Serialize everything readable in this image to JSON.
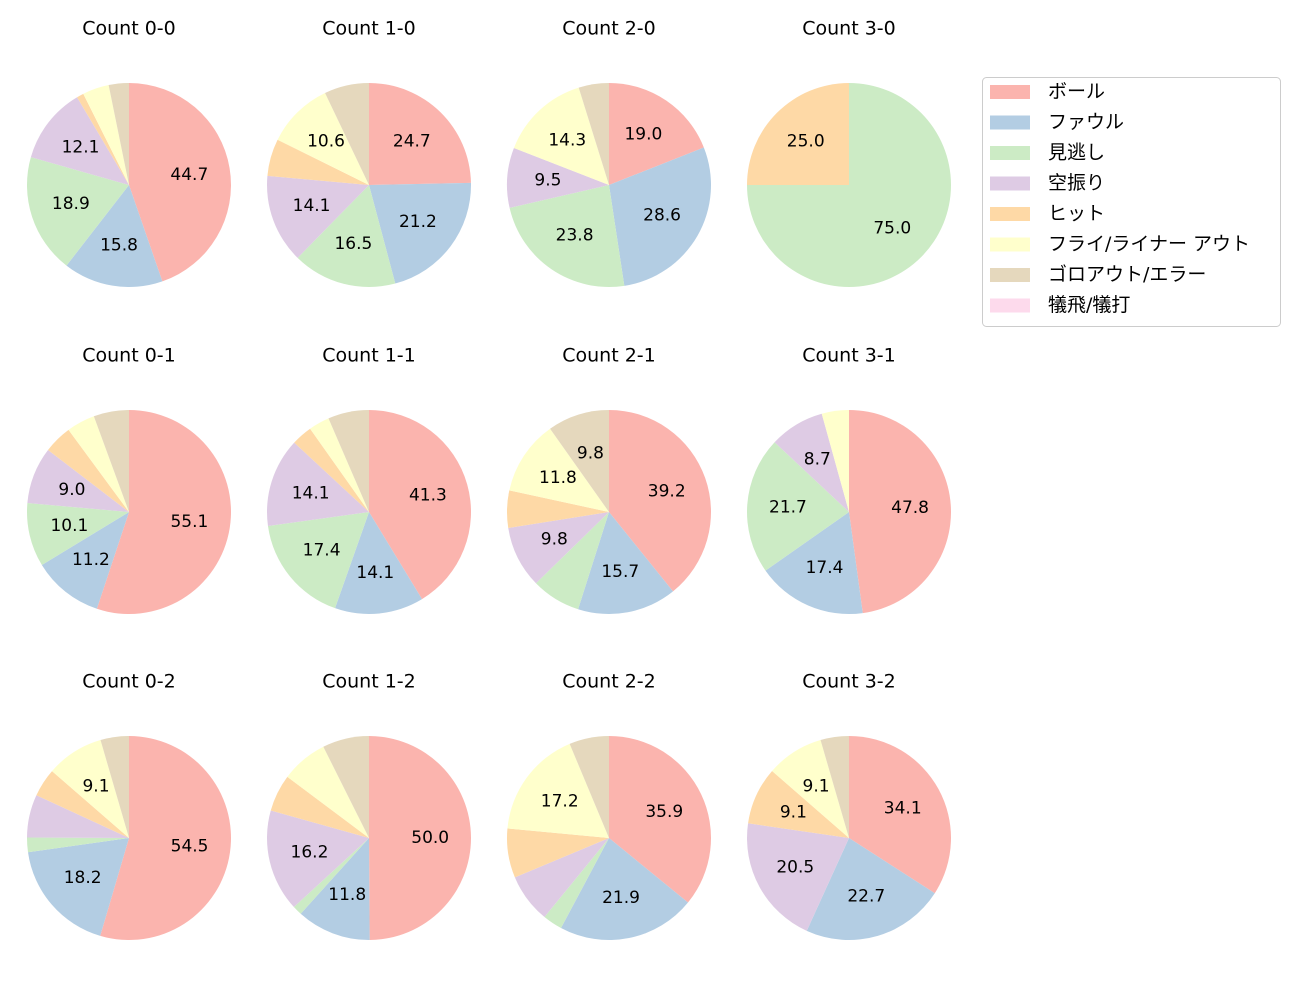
{
  "chart_data": {
    "type": "pie",
    "legend": {
      "position": "top-right",
      "entries": [
        "ボール",
        "ファウル",
        "見逃し",
        "空振り",
        "ヒット",
        "フライ/ライナー アウト",
        "ゴロアウト/エラー",
        "犠飛/犠打"
      ]
    },
    "colors": [
      "#fbb4ae",
      "#b3cde3",
      "#ccebc5",
      "#decbe4",
      "#fed9a6",
      "#ffffcc",
      "#e5d8bd",
      "#fddaec"
    ],
    "label_threshold_percent": 8,
    "charts": [
      {
        "title": "Count 0-0",
        "values": [
          44.7,
          15.8,
          18.9,
          12.1,
          1.1,
          4.2,
          3.2,
          0
        ]
      },
      {
        "title": "Count 1-0",
        "values": [
          24.7,
          21.2,
          16.5,
          14.1,
          5.9,
          10.6,
          7.1,
          0
        ]
      },
      {
        "title": "Count 2-0",
        "values": [
          19.0,
          28.6,
          23.8,
          9.5,
          0,
          14.3,
          4.8,
          0
        ]
      },
      {
        "title": "Count 3-0",
        "values": [
          0,
          0,
          75.0,
          0,
          25.0,
          0,
          0,
          0
        ]
      },
      {
        "title": "Count 0-1",
        "values": [
          55.1,
          11.2,
          10.1,
          9.0,
          4.5,
          4.5,
          5.6,
          0
        ]
      },
      {
        "title": "Count 1-1",
        "values": [
          41.3,
          14.1,
          17.4,
          14.1,
          3.3,
          3.3,
          6.5,
          0
        ]
      },
      {
        "title": "Count 2-1",
        "values": [
          39.2,
          15.7,
          7.8,
          9.8,
          5.9,
          11.8,
          9.8,
          0
        ]
      },
      {
        "title": "Count 3-1",
        "values": [
          47.8,
          17.4,
          21.7,
          8.7,
          0,
          4.3,
          0,
          0
        ]
      },
      {
        "title": "Count 0-2",
        "values": [
          54.5,
          18.2,
          2.3,
          6.8,
          4.5,
          9.1,
          4.5,
          0
        ]
      },
      {
        "title": "Count 1-2",
        "values": [
          50.0,
          11.8,
          1.5,
          16.2,
          5.9,
          7.4,
          7.4,
          0
        ]
      },
      {
        "title": "Count 2-2",
        "values": [
          35.9,
          21.9,
          3.1,
          7.8,
          7.8,
          17.2,
          6.3,
          0
        ]
      },
      {
        "title": "Count 3-2",
        "values": [
          34.1,
          22.7,
          0,
          20.5,
          9.1,
          9.1,
          4.5,
          0
        ]
      }
    ]
  }
}
